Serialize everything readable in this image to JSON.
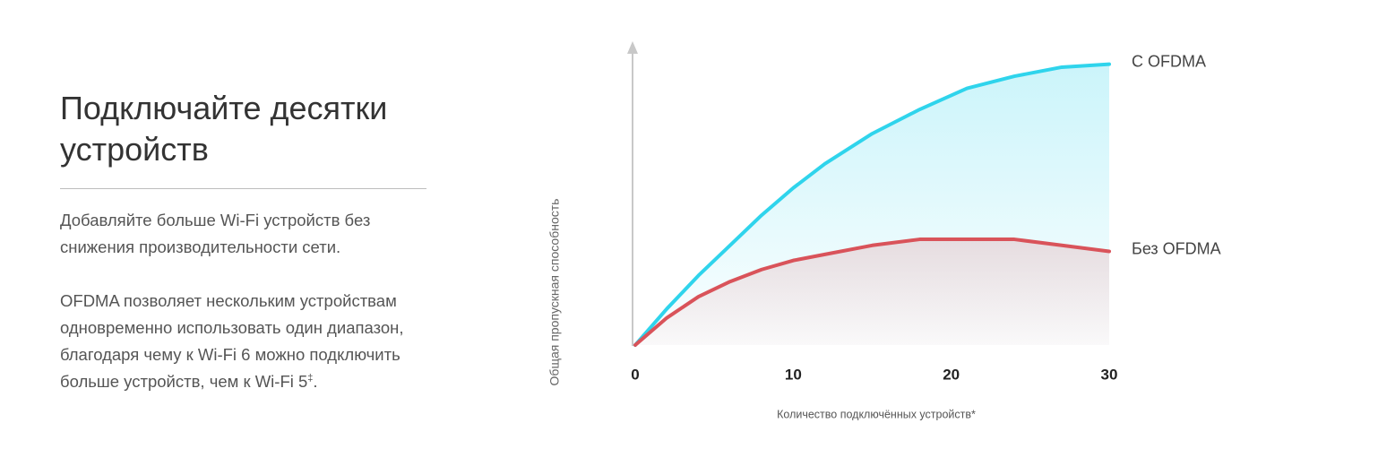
{
  "text": {
    "title": "Подключайте десятки устройств",
    "paragraph_1": "Добавляйте больше Wi-Fi устройств без снижения производительности сети.",
    "paragraph_2": "OFDMA позволяет нескольким устройствам одновременно использовать один диапазон, благодаря чему к Wi-Fi 6 можно подключить больше устройств, чем к Wi-Fi 5",
    "paragraph_2_sup": "‡",
    "paragraph_2_end": "."
  },
  "chart_data": {
    "type": "line",
    "y_label": "Общая пропускная способность",
    "x_label": "Количество подключённых устройств*",
    "x": [
      0,
      2,
      4,
      6,
      8,
      10,
      12,
      15,
      18,
      21,
      24,
      27,
      30
    ],
    "series": [
      {
        "name": "С OFDMA",
        "color": "#2fd4ec",
        "values": [
          0,
          12,
          23,
          33,
          43,
          52,
          60,
          70,
          78,
          85,
          89,
          92,
          93
        ]
      },
      {
        "name": "Без OFDMA",
        "color": "#d9535a",
        "values": [
          0,
          9,
          16,
          21,
          25,
          28,
          30,
          33,
          35,
          35,
          35,
          33,
          31
        ]
      }
    ],
    "xlim": [
      0,
      30
    ],
    "xticks": [
      0,
      10,
      20,
      30
    ],
    "ylim": [
      0,
      100
    ]
  }
}
